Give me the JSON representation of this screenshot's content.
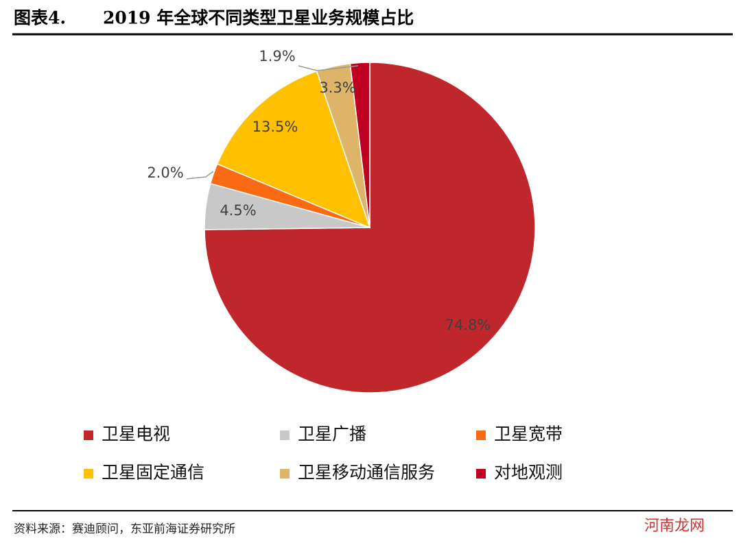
{
  "chart_data": {
    "type": "pie",
    "label": "图表4.",
    "title": "2019 年全球不同类型卫星业务规模占比",
    "categories": [
      "卫星电视",
      "卫星广播",
      "卫星宽带",
      "卫星固定通信",
      "卫星移动通信服务",
      "对地观测"
    ],
    "values": [
      74.8,
      4.5,
      2.0,
      13.5,
      3.3,
      1.9
    ],
    "value_labels": [
      "74.8%",
      "4.5%",
      "2.0%",
      "13.5%",
      "3.3%",
      "1.9%"
    ],
    "colors": [
      "#C0272D",
      "#C8C8C8",
      "#FA6A12",
      "#FFC000",
      "#DDB468",
      "#C00020"
    ]
  },
  "source": "资料来源：赛迪顾问，东亚前海证券研究所",
  "watermark": "河南龙网"
}
